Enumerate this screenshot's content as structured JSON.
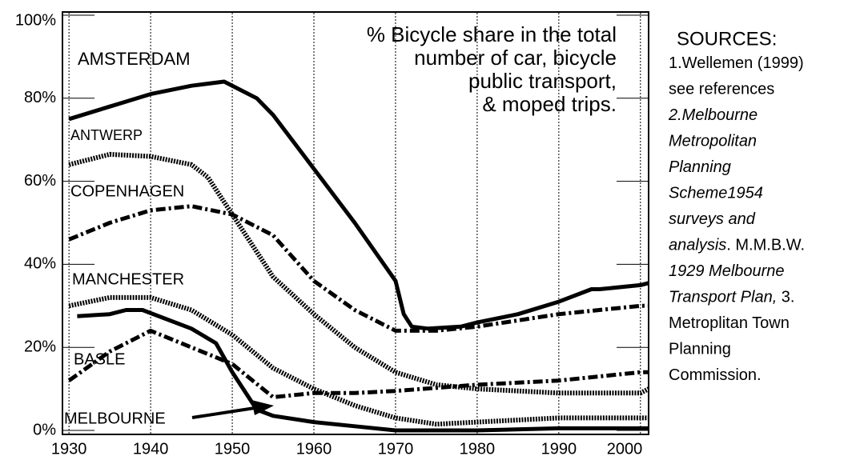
{
  "chart_data": {
    "type": "line",
    "annotation": [
      "% Bicycle share in the total",
      "number of car, bicycle",
      "public transport,",
      "& moped trips."
    ],
    "sources_title": "SOURCES:",
    "sources": [
      [
        {
          "text": "1.Wellemen (1999)"
        }
      ],
      [
        {
          "text": "see references"
        }
      ],
      [
        {
          "text": "2.Melbourne",
          "italic": true
        }
      ],
      [
        {
          "text": "Metropolitan",
          "italic": true
        }
      ],
      [
        {
          "text": "Planning",
          "italic": true
        }
      ],
      [
        {
          "text": "Scheme1954",
          "italic": true
        }
      ],
      [
        {
          "text": "surveys and",
          "italic": true
        }
      ],
      [
        {
          "text": "analysis",
          "italic": true
        },
        {
          "text": ". M.M.B.W."
        }
      ],
      [
        {
          "text": "1929 Melbourne",
          "italic": true
        }
      ],
      [
        {
          "text": "Transport Plan,",
          "italic": true
        },
        {
          "text": " 3."
        }
      ],
      [
        {
          "text": "Metroplitan Town"
        }
      ],
      [
        {
          "text": "Planning"
        }
      ],
      [
        {
          "text": "Commission."
        }
      ]
    ],
    "xlim": [
      1929.2,
      2001
    ],
    "xticks": [
      1930,
      1940,
      1950,
      1960,
      1970,
      1980,
      1990,
      2000
    ],
    "ylim": [
      0,
      100
    ],
    "yticks": [
      {
        "value": 0,
        "label": "0%"
      },
      {
        "value": 20,
        "label": "20%"
      },
      {
        "value": 40,
        "label": "40%"
      },
      {
        "value": 60,
        "label": "60%"
      },
      {
        "value": 80,
        "label": "80%"
      },
      {
        "value": 100,
        "label": "100%"
      }
    ],
    "grid": true,
    "series": [
      {
        "name": "AMSTERDAM",
        "color": "#000000",
        "style": "solid",
        "x": [
          1930,
          1935,
          1940,
          1945,
          1949,
          1953,
          1955,
          1960,
          1965,
          1970,
          1971,
          1972,
          1974,
          1978,
          1980,
          1985,
          1990,
          1994,
          1995,
          2000,
          2001
        ],
        "values": [
          75,
          78,
          81,
          83,
          84,
          80,
          76,
          63,
          50,
          36,
          28,
          25,
          24.5,
          25,
          26,
          28,
          31,
          34,
          34,
          35,
          35.5
        ]
      },
      {
        "name": "ANTWERP",
        "color": "#000000",
        "style": "dotted",
        "x": [
          1930,
          1935,
          1940,
          1945,
          1947,
          1950,
          1955,
          1960,
          1965,
          1970,
          1975,
          1980,
          1990,
          2000,
          2001
        ],
        "values": [
          64,
          66.5,
          66,
          64,
          61,
          52,
          37,
          28,
          20,
          14,
          11,
          10,
          9,
          9,
          10
        ]
      },
      {
        "name": "COPENHAGEN",
        "color": "#000000",
        "style": "dashdot",
        "x": [
          1930,
          1935,
          1940,
          1945,
          1950,
          1955,
          1960,
          1965,
          1970,
          1975,
          1980,
          1990,
          2000,
          2001
        ],
        "values": [
          46,
          50,
          53,
          54,
          52,
          47,
          36,
          29,
          24,
          24,
          25,
          28,
          30,
          30
        ]
      },
      {
        "name": "MANCHESTER",
        "color": "#000000",
        "style": "dotted",
        "x": [
          1930,
          1935,
          1940,
          1945,
          1950,
          1955,
          1960,
          1965,
          1970,
          1975,
          1980,
          1990,
          2000,
          2001
        ],
        "values": [
          30,
          32,
          32,
          29,
          23,
          15,
          10,
          6,
          3,
          1.5,
          2,
          3,
          3,
          3
        ]
      },
      {
        "name": "BASLE",
        "color": "#000000",
        "style": "dashdot",
        "x": [
          1930,
          1935,
          1940,
          1945,
          1950,
          1955,
          1960,
          1965,
          1970,
          1980,
          1990,
          2000,
          2001
        ],
        "values": [
          12,
          19,
          24,
          20,
          16,
          8,
          9,
          9,
          9.5,
          11,
          12,
          14,
          14
        ]
      },
      {
        "name": "MELBOURNE",
        "color": "#000000",
        "style": "solid",
        "x": [
          1931,
          1935,
          1937,
          1939,
          1945,
          1948,
          1950,
          1953,
          1955,
          1960,
          1965,
          1970,
          1980,
          1990,
          2000,
          2001
        ],
        "values": [
          27.5,
          28,
          29,
          29,
          24.5,
          21,
          14,
          5,
          3.5,
          2,
          1,
          0,
          0,
          0.5,
          0.5,
          0.5
        ]
      }
    ]
  }
}
